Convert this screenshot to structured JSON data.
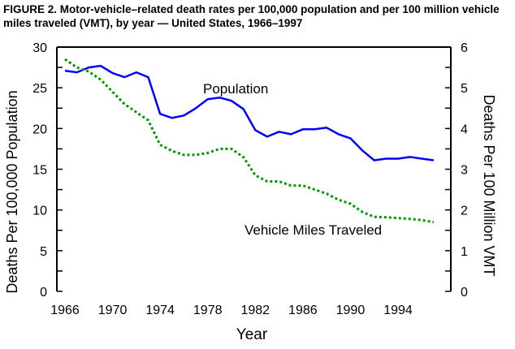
{
  "chart_data": {
    "type": "line",
    "title": "FIGURE 2. Motor-vehicle–related death rates per 100,000 population and per 100 million vehicle miles traveled (VMT), by year — United States, 1966–1997",
    "xlabel": "Year",
    "ylabel": "Deaths Per 100,000 Population",
    "y2label": "Deaths Per 100 Million VMT",
    "xlim": [
      1966,
      1997
    ],
    "ylim": [
      0,
      30
    ],
    "y2lim": [
      0,
      6
    ],
    "xticks": [
      "1966",
      "1970",
      "1974",
      "1978",
      "1982",
      "1986",
      "1990",
      "1994"
    ],
    "yticks": [
      "0",
      "5",
      "10",
      "15",
      "20",
      "25",
      "30"
    ],
    "y2ticks": [
      "0",
      "1",
      "2",
      "3",
      "4",
      "5",
      "6"
    ],
    "x": [
      1966,
      1967,
      1968,
      1969,
      1970,
      1971,
      1972,
      1973,
      1974,
      1975,
      1976,
      1977,
      1978,
      1979,
      1980,
      1981,
      1982,
      1983,
      1984,
      1985,
      1986,
      1987,
      1988,
      1989,
      1990,
      1991,
      1992,
      1993,
      1994,
      1995,
      1996,
      1997
    ],
    "series": [
      {
        "name": "Population",
        "axis": "left",
        "color": "#0000ff",
        "style": "solid",
        "values": [
          27.1,
          26.9,
          27.5,
          27.7,
          26.8,
          26.3,
          26.9,
          26.3,
          21.8,
          21.3,
          21.6,
          22.5,
          23.6,
          23.8,
          23.4,
          22.4,
          19.8,
          19.0,
          19.6,
          19.3,
          19.9,
          19.9,
          20.1,
          19.3,
          18.8,
          17.3,
          16.1,
          16.3,
          16.3,
          16.5,
          16.3,
          16.1
        ]
      },
      {
        "name": "Vehicle Miles Traveled",
        "axis": "right",
        "color": "#009900",
        "style": "dotted",
        "values": [
          5.7,
          5.5,
          5.4,
          5.2,
          4.9,
          4.6,
          4.4,
          4.2,
          3.6,
          3.45,
          3.35,
          3.35,
          3.4,
          3.5,
          3.5,
          3.3,
          2.85,
          2.7,
          2.7,
          2.6,
          2.6,
          2.5,
          2.4,
          2.25,
          2.15,
          1.95,
          1.83,
          1.82,
          1.8,
          1.78,
          1.75,
          1.7
        ]
      }
    ]
  }
}
